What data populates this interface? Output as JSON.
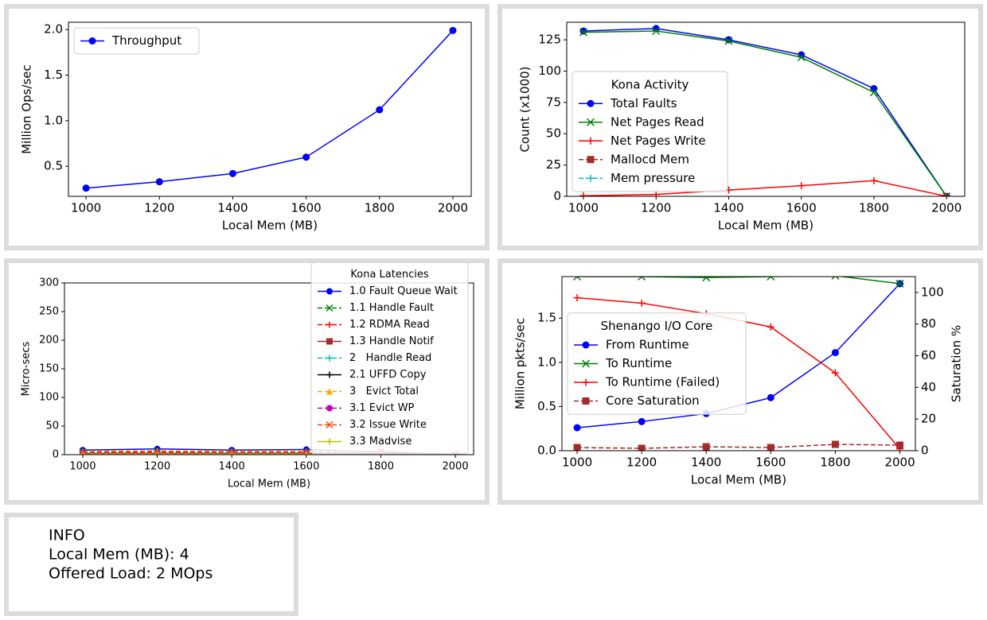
{
  "chart_data": [
    {
      "type": "line",
      "xlabel": "Local Mem (MB)",
      "ylabel": "Million Ops/sec",
      "x": [
        1000,
        1200,
        1400,
        1600,
        1800,
        2000
      ],
      "xlim": [
        952,
        2050
      ],
      "xticks": [
        1000,
        1200,
        1400,
        1600,
        1800,
        2000
      ],
      "ylim": [
        0.17,
        2.08
      ],
      "yticks": [
        0.5,
        {
          "value": 1,
          "label": "1.0"
        },
        1.5,
        {
          "value": 2,
          "label": "2.0"
        }
      ],
      "legend": "upper left",
      "series": [
        {
          "name": "Throughput",
          "color": "#0000ff",
          "marker": "o",
          "linestyle": "-",
          "values": [
            0.26,
            0.33,
            0.42,
            0.6,
            1.12,
            1.99
          ]
        }
      ]
    },
    {
      "type": "line",
      "xlabel": "Local Mem (MB)",
      "ylabel": "Count (x1000)",
      "x": [
        1000,
        1200,
        1400,
        1600,
        1800,
        2000
      ],
      "xlim": [
        954,
        2050
      ],
      "xticks": [
        1000,
        1200,
        1400,
        1600,
        1800,
        2000
      ],
      "ylim": [
        0,
        139
      ],
      "yticks": [
        0,
        25,
        50,
        75,
        100,
        125
      ],
      "legend": "center left",
      "legend_title": "Kona Activity",
      "series": [
        {
          "name": "Total Faults",
          "color": "#0000ff",
          "marker": "o",
          "linestyle": "-",
          "values": [
            132,
            134,
            125,
            113,
            86,
            0
          ]
        },
        {
          "name": "Net Pages Read",
          "color": "#008000",
          "marker": "x",
          "linestyle": "-",
          "values": [
            131,
            132,
            124,
            111,
            83,
            0
          ]
        },
        {
          "name": "Net Pages Write",
          "color": "#ff0000",
          "marker": "+",
          "linestyle": "-",
          "values": [
            0.5,
            1.5,
            5,
            8.5,
            12.5,
            0
          ]
        },
        {
          "name": "Mallocd Mem",
          "color": "#a52a2a",
          "marker": "s",
          "linestyle": "--",
          "values": [
            null,
            null,
            null,
            null,
            null,
            null
          ]
        },
        {
          "name": "Mem pressure",
          "color": "#00bfbf",
          "marker": "+",
          "linestyle": "--",
          "values": [
            null,
            null,
            null,
            null,
            null,
            null
          ]
        }
      ]
    },
    {
      "type": "line",
      "xlabel": "Local Mem (MB)",
      "ylabel": "Micro-secs",
      "x": [
        1000,
        1200,
        1400,
        1600,
        1800,
        2000
      ],
      "xlim": [
        951,
        2049
      ],
      "xticks": [
        1000,
        1200,
        1400,
        1600,
        1800,
        2000
      ],
      "ylim": [
        0,
        300
      ],
      "yticks": [
        0,
        50,
        100,
        150,
        200,
        250,
        300
      ],
      "legend": "upper right",
      "legend_title": "Kona Latencies",
      "series": [
        {
          "name": "1.0 Fault Queue Wait",
          "color": "#0000ff",
          "marker": "o",
          "linestyle": "-",
          "values": [
            8,
            10,
            8,
            9,
            5,
            0
          ]
        },
        {
          "name": "1.1 Handle Fault",
          "color": "#008000",
          "marker": "x",
          "linestyle": "--",
          "values": [
            5,
            6,
            5,
            5,
            4,
            0
          ]
        },
        {
          "name": "1.2 RDMA Read",
          "color": "#ff0000",
          "marker": "+",
          "linestyle": "--",
          "values": [
            4,
            5,
            4,
            4,
            4,
            0
          ]
        },
        {
          "name": "1.3 Handle Notif",
          "color": "#a52a2a",
          "marker": "s",
          "linestyle": "-",
          "values": [
            1,
            1,
            1,
            1,
            1,
            0
          ]
        },
        {
          "name": "2   Handle Read",
          "color": "#00bfbf",
          "marker": "+",
          "linestyle": "--",
          "values": [
            3,
            3,
            3,
            3,
            3,
            0
          ]
        },
        {
          "name": "2.1 UFFD Copy",
          "color": "#000000",
          "marker": "+",
          "linestyle": "-",
          "values": [
            2,
            2,
            2,
            2,
            2,
            0
          ]
        },
        {
          "name": "3   Evict Total",
          "color": "#ffa500",
          "marker": "^",
          "linestyle": "--",
          "values": [
            6,
            7,
            6,
            6,
            7,
            0
          ]
        },
        {
          "name": "3.1 Evict WP",
          "color": "#bf00bf",
          "marker": "o",
          "linestyle": "--",
          "values": [
            3,
            3,
            3,
            3,
            3,
            0
          ]
        },
        {
          "name": "3.2 Issue Write",
          "color": "#ff4500",
          "marker": "x",
          "linestyle": "--",
          "values": [
            2,
            2,
            2,
            2,
            2,
            0
          ]
        },
        {
          "name": "3.3 Madvise",
          "color": "#bfbf00",
          "marker": "+",
          "linestyle": "-",
          "values": [
            1,
            1,
            1,
            1,
            1,
            0
          ]
        }
      ]
    },
    {
      "type": "line",
      "xlabel": "Local Mem (MB)",
      "ylabel": "Million pkts/sec",
      "y2label": "Saturation %",
      "x": [
        1000,
        1200,
        1400,
        1600,
        1800,
        2000
      ],
      "xlim": [
        953,
        2048
      ],
      "xticks": [
        1000,
        1200,
        1400,
        1600,
        1800,
        2000
      ],
      "ylim": [
        0,
        1.97
      ],
      "yticks": [
        {
          "value": 0,
          "label": "0.0"
        },
        0.5,
        {
          "value": 1,
          "label": "1.0"
        },
        1.5
      ],
      "y2lim": [
        0,
        110
      ],
      "y2ticks": [
        0,
        20,
        40,
        60,
        80,
        100
      ],
      "legend": "center left",
      "legend_title": "Shenango I/O Core",
      "series": [
        {
          "name": "From Runtime",
          "color": "#0000ff",
          "marker": "o",
          "linestyle": "-",
          "values": [
            0.26,
            0.33,
            0.42,
            0.6,
            1.11,
            1.89
          ]
        },
        {
          "name": "To Runtime",
          "color": "#008000",
          "marker": "x",
          "linestyle": "-",
          "values": [
            1.97,
            1.97,
            1.96,
            1.97,
            1.98,
            1.89
          ]
        },
        {
          "name": "To Runtime (Failed)",
          "color": "#ff0000",
          "marker": "+",
          "linestyle": "-",
          "values": [
            1.73,
            1.67,
            1.55,
            1.4,
            0.88,
            0.02
          ]
        },
        {
          "name": "Core Saturation",
          "color": "#a52a2a",
          "marker": "s",
          "linestyle": "--",
          "axis": "y2",
          "values": [
            2,
            1.5,
            2.5,
            2,
            4,
            3.5
          ]
        }
      ]
    }
  ],
  "info": {
    "lines": [
      "INFO",
      "Local Mem (MB): 4",
      "Offered Load: 2 MOps"
    ]
  }
}
